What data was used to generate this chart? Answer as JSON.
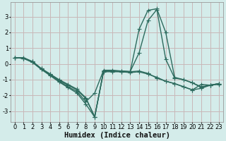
{
  "background_color": "#d4ecea",
  "grid_color": "#c8b8b8",
  "line_color": "#2d6b5e",
  "line_width": 1.0,
  "marker": "+",
  "marker_size": 4.0,
  "xlabel": "Humidex (Indice chaleur)",
  "xlabel_fontsize": 7.5,
  "tick_fontsize": 6.0,
  "xlim": [
    -0.5,
    23.5
  ],
  "ylim": [
    -3.7,
    3.9
  ],
  "xticks": [
    0,
    1,
    2,
    3,
    4,
    5,
    6,
    7,
    8,
    9,
    10,
    11,
    12,
    13,
    14,
    15,
    16,
    17,
    18,
    19,
    20,
    21,
    22,
    23
  ],
  "yticks": [
    -3,
    -2,
    -1,
    0,
    1,
    2,
    3
  ],
  "series": [
    [
      0.4,
      0.4,
      0.15,
      -0.3,
      -0.65,
      -1.0,
      -1.3,
      -1.6,
      -2.15,
      -3.35,
      -0.5,
      -0.5,
      -0.5,
      -0.55,
      -0.5,
      -0.65,
      -0.85,
      -1.1,
      -1.25,
      -1.45,
      -1.65,
      -1.3,
      -1.35,
      -1.3
    ],
    [
      0.4,
      0.35,
      0.15,
      -0.3,
      -0.65,
      -1.05,
      -1.35,
      -1.65,
      -2.2,
      -3.35,
      -0.45,
      -0.45,
      -0.5,
      -0.5,
      -0.45,
      -0.6,
      -0.9,
      -1.1,
      -1.25,
      -1.45,
      -1.65,
      -1.55,
      -1.35,
      -1.25
    ],
    [
      0.4,
      0.35,
      0.1,
      -0.35,
      -0.7,
      -1.1,
      -1.45,
      -1.75,
      -2.4,
      -1.85,
      -0.4,
      -0.4,
      -0.45,
      -0.5,
      2.2,
      3.4,
      3.5,
      2.0,
      -0.85,
      -1.0,
      -1.2,
      -1.45,
      -1.35,
      -1.25
    ],
    [
      0.4,
      0.35,
      0.1,
      -0.35,
      -0.75,
      -1.15,
      -1.5,
      -1.85,
      -2.55,
      -3.38,
      -0.45,
      -0.45,
      -0.45,
      -0.48,
      0.7,
      2.75,
      3.45,
      0.3,
      -0.9,
      -1.0,
      -1.2,
      -1.5,
      -1.35,
      -1.25
    ]
  ]
}
